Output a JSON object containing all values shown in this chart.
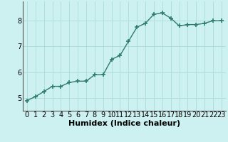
{
  "x": [
    0,
    1,
    2,
    3,
    4,
    5,
    6,
    7,
    8,
    9,
    10,
    11,
    12,
    13,
    14,
    15,
    16,
    17,
    18,
    19,
    20,
    21,
    22,
    23
  ],
  "y": [
    4.9,
    5.05,
    5.25,
    5.45,
    5.45,
    5.6,
    5.65,
    5.65,
    5.9,
    5.9,
    6.5,
    6.65,
    7.2,
    7.75,
    7.9,
    8.25,
    8.3,
    8.1,
    7.8,
    7.85,
    7.85,
    7.9,
    8.0,
    8.0
  ],
  "bg_color": "#cdf0f0",
  "line_color": "#2e7d6e",
  "marker_color": "#2e7d6e",
  "grid_color": "#b0dede",
  "xlabel": "Humidex (Indice chaleur)",
  "xlim": [
    -0.5,
    23.5
  ],
  "ylim": [
    4.5,
    8.75
  ],
  "yticks": [
    5,
    6,
    7,
    8
  ],
  "xtick_labels": [
    "0",
    "1",
    "2",
    "3",
    "4",
    "5",
    "6",
    "7",
    "8",
    "9",
    "10",
    "11",
    "12",
    "13",
    "14",
    "15",
    "16",
    "17",
    "18",
    "19",
    "20",
    "21",
    "22",
    "23"
  ],
  "xlabel_fontsize": 8,
  "tick_fontsize": 7,
  "line_width": 1.0,
  "marker_size": 4
}
